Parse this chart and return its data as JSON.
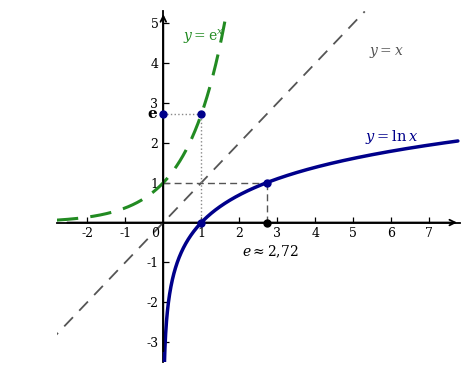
{
  "xlim": [
    -2.8,
    7.8
  ],
  "ylim": [
    -3.5,
    5.3
  ],
  "xticks": [
    -2,
    -1,
    1,
    2,
    3,
    4,
    5,
    6,
    7
  ],
  "yticks": [
    -3,
    -2,
    -1,
    1,
    2,
    3,
    4,
    5
  ],
  "ln_color": "#00008B",
  "exp_color": "#228B22",
  "diag_color": "#555555",
  "dot_color": "#888888",
  "dash_color": "#555555",
  "e_value": 2.71828182845905,
  "background_color": "#ffffff"
}
